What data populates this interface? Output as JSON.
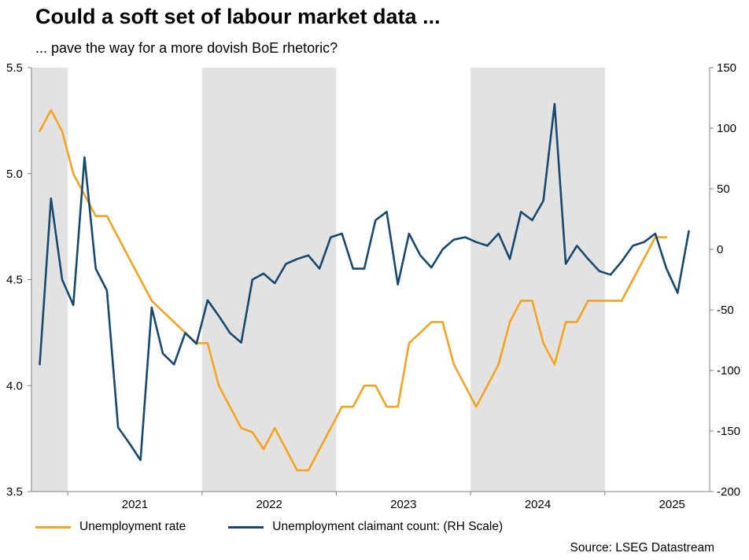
{
  "chart_data": {
    "type": "line",
    "title": "Could a soft set of labour market data ...",
    "subtitle": "... pave the way for a more dovish BoE rhetoric?",
    "source": "Source: LSEG Datastream",
    "band_color": "#E2E2E2",
    "axis_color": "#808080",
    "x_axis": {
      "min": 2020.73,
      "max": 2025.78,
      "year_tick_positions": [
        2021,
        2022,
        2023,
        2024,
        2025
      ],
      "year_labels": [
        "2021",
        "2022",
        "2023",
        "2024",
        "2025"
      ]
    },
    "left_axis": {
      "min": 3.5,
      "max": 5.5,
      "ticks": [
        3.5,
        4.0,
        4.5,
        5.0,
        5.5
      ],
      "tick_labels": [
        "3.5",
        "4.0",
        "4.5",
        "5.0",
        "5.5"
      ]
    },
    "right_axis": {
      "min": -200,
      "max": 150,
      "ticks": [
        -200,
        -150,
        -100,
        -50,
        0,
        50,
        100,
        150
      ],
      "tick_labels": [
        "-200",
        "-150",
        "-100",
        "-50",
        "0",
        "50",
        "100",
        "150"
      ]
    },
    "shaded_bands": [
      [
        2020.73,
        2021
      ],
      [
        2022,
        2023
      ],
      [
        2024,
        2025
      ]
    ],
    "series": [
      {
        "name": "Unemployment rate",
        "axis": "left",
        "color": "#F5A21D",
        "x_start": 2020.7917,
        "x_step": 0.0833333,
        "values": [
          5.2,
          5.3,
          5.2,
          5.0,
          4.9,
          4.8,
          4.8,
          4.7,
          4.6,
          4.5,
          4.4,
          4.35,
          4.3,
          4.25,
          4.2,
          4.2,
          4.0,
          3.9,
          3.8,
          3.78,
          3.7,
          3.8,
          3.7,
          3.6,
          3.6,
          3.7,
          3.8,
          3.9,
          3.9,
          4.0,
          4.0,
          3.9,
          3.9,
          4.2,
          4.25,
          4.3,
          4.3,
          4.1,
          4.0,
          3.9,
          4.0,
          4.1,
          4.3,
          4.4,
          4.4,
          4.2,
          4.1,
          4.3,
          4.3,
          4.4,
          4.4,
          4.4,
          4.4,
          4.5,
          4.6,
          4.7,
          4.7
        ]
      },
      {
        "name": "Unemployment claimant count: (RH Scale)",
        "axis": "right",
        "color": "#17486E",
        "x_start": 2020.7917,
        "x_step": 0.0833333,
        "values": [
          -95,
          42,
          -25,
          -46,
          76,
          -16,
          -34,
          -147,
          -160,
          -174,
          -48,
          -86,
          -95,
          -69,
          -78,
          -42,
          -55,
          -69,
          -77,
          -25,
          -20,
          -28,
          -12,
          -8,
          -5,
          -16,
          10,
          13,
          -16,
          -16,
          24,
          31,
          -29,
          13,
          -5,
          -15,
          0,
          8,
          10,
          6,
          3,
          13,
          -8,
          31,
          24,
          40,
          120,
          -12,
          3,
          -8,
          -18,
          -21,
          -10,
          3,
          6,
          13,
          -16,
          -36,
          15
        ]
      }
    ]
  }
}
